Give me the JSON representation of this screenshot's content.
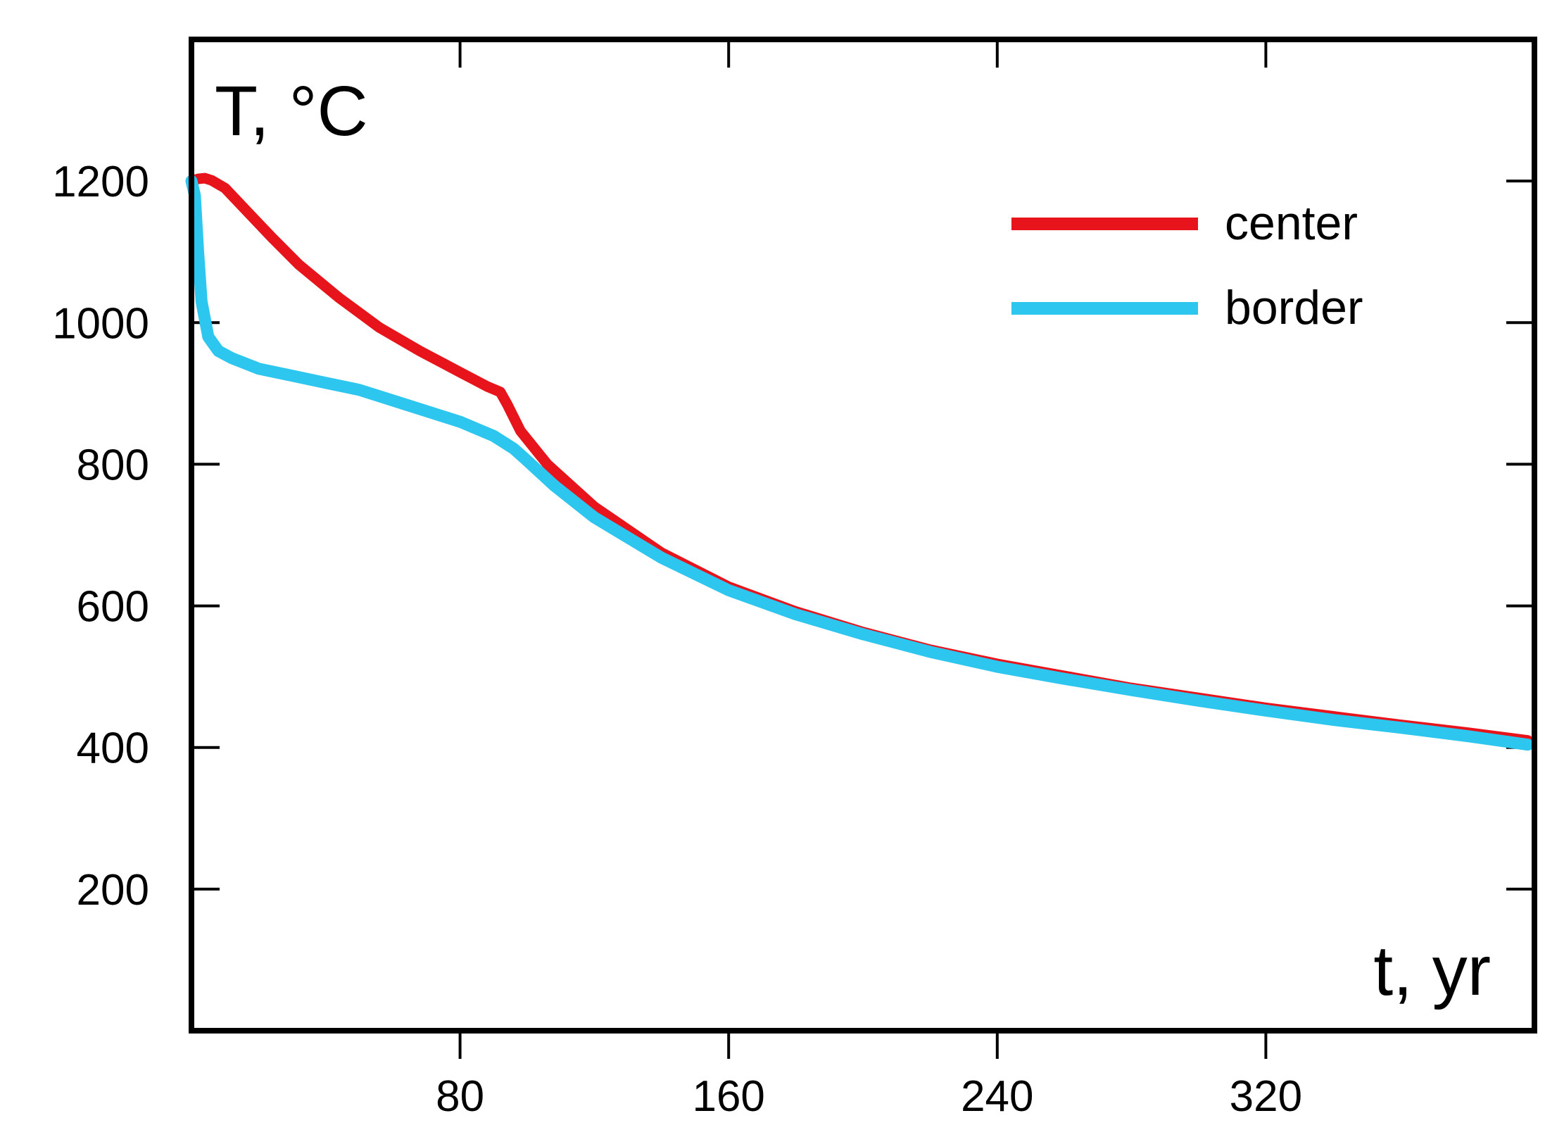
{
  "chart_data": {
    "type": "line",
    "title": "",
    "ylabel": "T, °C",
    "xlabel": "t, yr",
    "xlim": [
      0,
      400
    ],
    "ylim": [
      0,
      1400
    ],
    "x_ticks": [
      80,
      160,
      240,
      320
    ],
    "y_ticks": [
      200,
      400,
      600,
      800,
      1000,
      1200
    ],
    "legend_position": "top-right",
    "series": [
      {
        "name": "center",
        "color": "#e8141c",
        "points": [
          [
            0,
            1200
          ],
          [
            2,
            1203
          ],
          [
            4,
            1204
          ],
          [
            6,
            1201
          ],
          [
            10,
            1190
          ],
          [
            16,
            1160
          ],
          [
            24,
            1120
          ],
          [
            32,
            1082
          ],
          [
            44,
            1035
          ],
          [
            56,
            993
          ],
          [
            68,
            960
          ],
          [
            80,
            930
          ],
          [
            88,
            910
          ],
          [
            92,
            902
          ],
          [
            94,
            885
          ],
          [
            98,
            847
          ],
          [
            106,
            800
          ],
          [
            120,
            740
          ],
          [
            140,
            675
          ],
          [
            160,
            627
          ],
          [
            180,
            592
          ],
          [
            200,
            563
          ],
          [
            220,
            538
          ],
          [
            240,
            518
          ],
          [
            260,
            501
          ],
          [
            280,
            484
          ],
          [
            300,
            470
          ],
          [
            320,
            456
          ],
          [
            340,
            444
          ],
          [
            360,
            432
          ],
          [
            380,
            421
          ],
          [
            398,
            410
          ]
        ]
      },
      {
        "name": "border",
        "color": "#2cc6ef",
        "points": [
          [
            0,
            1200
          ],
          [
            1,
            1180
          ],
          [
            2,
            1100
          ],
          [
            3,
            1030
          ],
          [
            5,
            980
          ],
          [
            8,
            960
          ],
          [
            12,
            950
          ],
          [
            20,
            935
          ],
          [
            30,
            925
          ],
          [
            40,
            915
          ],
          [
            50,
            905
          ],
          [
            60,
            890
          ],
          [
            70,
            875
          ],
          [
            80,
            860
          ],
          [
            90,
            840
          ],
          [
            96,
            822
          ],
          [
            100,
            805
          ],
          [
            108,
            770
          ],
          [
            120,
            725
          ],
          [
            140,
            668
          ],
          [
            160,
            622
          ],
          [
            180,
            588
          ],
          [
            200,
            560
          ],
          [
            220,
            535
          ],
          [
            240,
            514
          ],
          [
            260,
            497
          ],
          [
            280,
            481
          ],
          [
            300,
            466
          ],
          [
            320,
            452
          ],
          [
            340,
            439
          ],
          [
            360,
            428
          ],
          [
            380,
            416
          ],
          [
            398,
            404
          ]
        ]
      }
    ]
  }
}
